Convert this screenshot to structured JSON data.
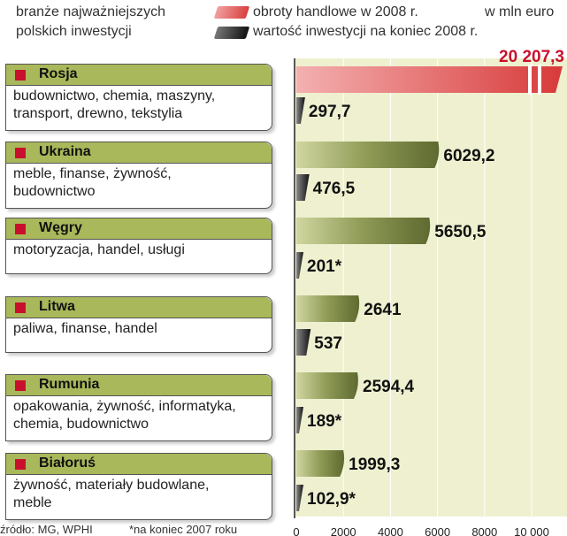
{
  "header": {
    "subtitle_line1": "branże najważniejszych",
    "subtitle_line2": "polskich inwestycji",
    "legend_trade": "obroty handlowe w 2008 r.",
    "legend_invest": "wartość inwestycji na koniec 2008 r.",
    "unit": "w mln euro"
  },
  "countries": [
    {
      "name": "Rosja",
      "desc": [
        "budownictwo, chemia, maszyny,",
        "transport, drewno, tekstylia"
      ]
    },
    {
      "name": "Ukraina",
      "desc": [
        "meble, finanse, żywność,",
        "budownictwo"
      ]
    },
    {
      "name": "Węgry",
      "desc": [
        "motoryzacja, handel, usługi"
      ]
    },
    {
      "name": "Litwa",
      "desc": [
        "paliwa, finanse, handel"
      ]
    },
    {
      "name": "Rumunia",
      "desc": [
        "opakowania, żywność, informatyka,",
        "chemia, budownictwo"
      ]
    },
    {
      "name": "Białoruś",
      "desc": [
        "żywność, materiały budowlane,",
        "meble"
      ]
    }
  ],
  "footer": {
    "source": "źródło: MG, WPHI",
    "note": "*na koniec 2007 roku"
  },
  "colors": {
    "trade_bar": "#d94040",
    "trade_bar_light": "#f0a0a0",
    "olive_bar": "#6e7a3c",
    "olive_bar_light": "#c9cf9a",
    "invest_bar": "#222222",
    "panel_bg": "#eef0cf",
    "label_red": "#c8102e",
    "header_green": "#a9b85a"
  },
  "chart_data": {
    "type": "bar",
    "orientation": "horizontal",
    "categories": [
      "Rosja",
      "Ukraina",
      "Węgry",
      "Litwa",
      "Rumunia",
      "Białoruś"
    ],
    "series": [
      {
        "name": "obroty handlowe w 2008 r.",
        "values": [
          20207.3,
          6029.2,
          5650.5,
          2641,
          2594.4,
          1999.3
        ],
        "labels": [
          "20 207,3",
          "6029,2",
          "5650,5",
          "2641",
          "2594,4",
          "1999,3"
        ]
      },
      {
        "name": "wartość inwestycji na koniec 2008 r.",
        "values": [
          297.7,
          476.5,
          201,
          537,
          189,
          102.9
        ],
        "labels": [
          "297,7",
          "476,5",
          "201*",
          "537",
          "189*",
          "102,9*"
        ]
      }
    ],
    "xlim": [
      0,
      10000
    ],
    "xticks": [
      "0",
      "2000",
      "4000",
      "6000",
      "8000",
      "10 000"
    ],
    "xtick_values": [
      0,
      2000,
      4000,
      6000,
      8000,
      10000
    ],
    "axis_break": true,
    "unit": "w mln euro"
  }
}
